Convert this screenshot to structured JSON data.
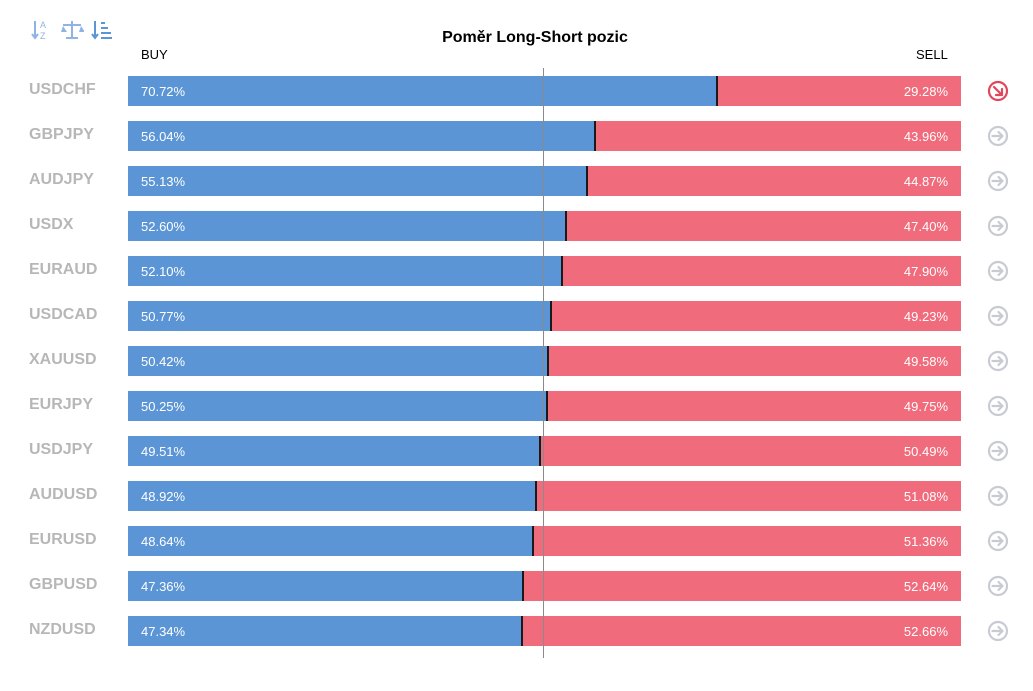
{
  "title": "Poměr Long-Short pozic",
  "labels": {
    "buy": "BUY",
    "sell": "SELL"
  },
  "toolbar": {
    "icons": [
      "sort-alphabetical-icon",
      "balance-scale-icon",
      "sort-descending-icon"
    ]
  },
  "colors": {
    "buy": "#5b95d6",
    "sell": "#f06b7b",
    "symbol_text": "#b7b7b7",
    "arrow_inactive": "#c9cbd3",
    "arrow_active": "#e0475a"
  },
  "chart_data": {
    "type": "bar",
    "stacked": true,
    "orientation": "horizontal",
    "title": "Poměr Long-Short pozic",
    "categories": [
      "USDCHF",
      "GBPJPY",
      "AUDJPY",
      "USDX",
      "EURAUD",
      "USDCAD",
      "XAUUSD",
      "EURJPY",
      "USDJPY",
      "AUDUSD",
      "EURUSD",
      "GBPUSD",
      "NZDUSD"
    ],
    "series": [
      {
        "name": "BUY",
        "values": [
          70.72,
          56.04,
          55.13,
          52.6,
          52.1,
          50.77,
          50.42,
          50.25,
          49.51,
          48.92,
          48.64,
          47.36,
          47.34
        ]
      },
      {
        "name": "SELL",
        "values": [
          29.28,
          43.96,
          44.87,
          47.4,
          47.9,
          49.23,
          49.58,
          49.75,
          50.49,
          51.08,
          51.36,
          52.64,
          52.66
        ]
      }
    ],
    "value_labels": {
      "buy": [
        "70.72%",
        "56.04%",
        "55.13%",
        "52.60%",
        "52.10%",
        "50.77%",
        "50.42%",
        "50.25%",
        "49.51%",
        "48.92%",
        "48.64%",
        "47.36%",
        "47.34%"
      ],
      "sell": [
        "29.28%",
        "43.96%",
        "44.87%",
        "47.40%",
        "47.90%",
        "49.23%",
        "49.58%",
        "49.75%",
        "50.49%",
        "51.08%",
        "51.36%",
        "52.64%",
        "52.66%"
      ]
    },
    "xlim": [
      0,
      100
    ],
    "reference_line": 50,
    "row_action_icons": [
      "arrow-down-right-circle-icon",
      "arrow-right-circle-icon",
      "arrow-right-circle-icon",
      "arrow-right-circle-icon",
      "arrow-right-circle-icon",
      "arrow-right-circle-icon",
      "arrow-right-circle-icon",
      "arrow-right-circle-icon",
      "arrow-right-circle-icon",
      "arrow-right-circle-icon",
      "arrow-right-circle-icon",
      "arrow-right-circle-icon",
      "arrow-right-circle-icon"
    ]
  }
}
